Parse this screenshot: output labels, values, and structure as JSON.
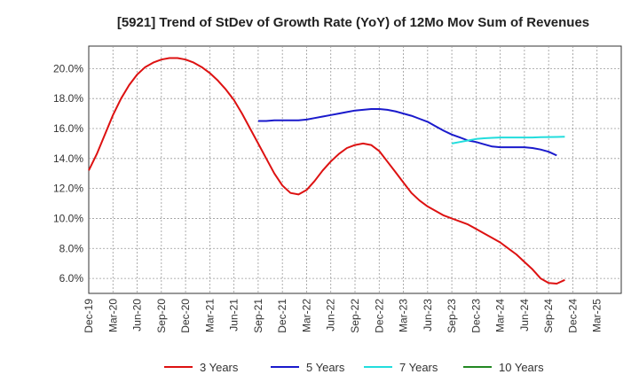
{
  "chart_data": {
    "type": "line",
    "title": "[5921]  Trend of StDev of Growth Rate (YoY) of 12Mo Mov Sum of Revenues",
    "xlabel": "",
    "ylabel": "",
    "ylim": [
      5.0,
      21.5
    ],
    "yticks": [
      6.0,
      8.0,
      10.0,
      12.0,
      14.0,
      16.0,
      18.0,
      20.0
    ],
    "ytick_labels": [
      "6.0%",
      "8.0%",
      "10.0%",
      "12.0%",
      "14.0%",
      "16.0%",
      "18.0%",
      "20.0%"
    ],
    "x_range": [
      0,
      66
    ],
    "x_ticks": [
      {
        "i": 0,
        "label": "Dec-19"
      },
      {
        "i": 3,
        "label": "Mar-20"
      },
      {
        "i": 6,
        "label": "Jun-20"
      },
      {
        "i": 9,
        "label": "Sep-20"
      },
      {
        "i": 12,
        "label": "Dec-20"
      },
      {
        "i": 15,
        "label": "Mar-21"
      },
      {
        "i": 18,
        "label": "Jun-21"
      },
      {
        "i": 21,
        "label": "Sep-21"
      },
      {
        "i": 24,
        "label": "Dec-21"
      },
      {
        "i": 27,
        "label": "Mar-22"
      },
      {
        "i": 30,
        "label": "Jun-22"
      },
      {
        "i": 33,
        "label": "Sep-22"
      },
      {
        "i": 36,
        "label": "Dec-22"
      },
      {
        "i": 39,
        "label": "Mar-23"
      },
      {
        "i": 42,
        "label": "Jun-23"
      },
      {
        "i": 45,
        "label": "Sep-23"
      },
      {
        "i": 48,
        "label": "Dec-23"
      },
      {
        "i": 51,
        "label": "Mar-24"
      },
      {
        "i": 54,
        "label": "Jun-24"
      },
      {
        "i": 57,
        "label": "Sep-24"
      },
      {
        "i": 60,
        "label": "Dec-24"
      },
      {
        "i": 63,
        "label": "Mar-25"
      }
    ],
    "series": [
      {
        "name": "3 Years",
        "color": "#dd1111",
        "start": 0,
        "values": [
          13.2,
          14.3,
          15.6,
          16.9,
          18.0,
          18.9,
          19.6,
          20.1,
          20.4,
          20.6,
          20.7,
          20.7,
          20.6,
          20.4,
          20.1,
          19.7,
          19.2,
          18.6,
          17.9,
          17.0,
          16.0,
          15.0,
          14.0,
          13.0,
          12.2,
          11.7,
          11.6,
          11.9,
          12.5,
          13.2,
          13.8,
          14.3,
          14.7,
          14.9,
          15.0,
          14.9,
          14.5,
          13.8,
          13.1,
          12.4,
          11.7,
          11.2,
          10.8,
          10.5,
          10.2,
          10.0,
          9.8,
          9.6,
          9.3,
          9.0,
          8.7,
          8.4,
          8.0,
          7.6,
          7.1,
          6.6,
          6.0,
          5.7,
          5.65,
          5.9
        ]
      },
      {
        "name": "5 Years",
        "color": "#1a1acc",
        "start": 21,
        "values": [
          16.5,
          16.5,
          16.55,
          16.55,
          16.55,
          16.55,
          16.6,
          16.7,
          16.8,
          16.9,
          17.0,
          17.1,
          17.2,
          17.25,
          17.3,
          17.3,
          17.25,
          17.15,
          17.0,
          16.85,
          16.65,
          16.45,
          16.15,
          15.85,
          15.6,
          15.4,
          15.2,
          15.1,
          14.95,
          14.8,
          14.75,
          14.75,
          14.75,
          14.75,
          14.7,
          14.6,
          14.45,
          14.2
        ]
      },
      {
        "name": "7 Years",
        "color": "#22dddd",
        "start": 45,
        "values": [
          15.0,
          15.1,
          15.2,
          15.3,
          15.35,
          15.38,
          15.4,
          15.4,
          15.4,
          15.4,
          15.4,
          15.42,
          15.43,
          15.44,
          15.45
        ]
      },
      {
        "name": "10 Years",
        "color": "#228822",
        "start": 0,
        "values": []
      }
    ],
    "legend_position": "bottom",
    "grid": true
  }
}
